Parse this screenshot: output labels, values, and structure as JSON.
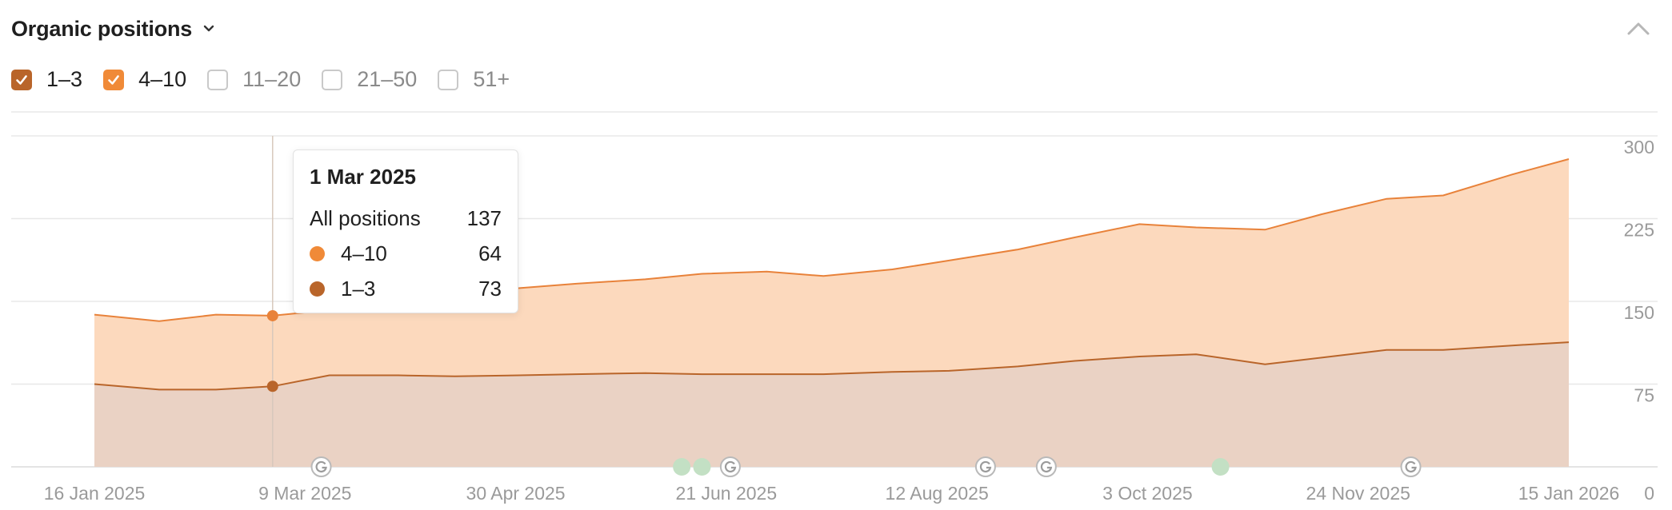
{
  "header": {
    "title": "Organic positions",
    "dropdown_icon": "chevron-down-icon",
    "collapse_icon": "chevron-up-icon"
  },
  "filters": [
    {
      "label": "1–3",
      "checked": true,
      "color": "#b9652a"
    },
    {
      "label": "4–10",
      "checked": true,
      "color": "#f08a38"
    },
    {
      "label": "11–20",
      "checked": false,
      "color": "#c9c9c9"
    },
    {
      "label": "21–50",
      "checked": false,
      "color": "#c9c9c9"
    },
    {
      "label": "51+",
      "checked": false,
      "color": "#c9c9c9"
    }
  ],
  "tooltip": {
    "date": "1 Mar 2025",
    "total_label": "All positions",
    "total_value": "137",
    "rows": [
      {
        "label": "4–10",
        "value": "64",
        "color": "#f08a38"
      },
      {
        "label": "1–3",
        "value": "73",
        "color": "#b9652a"
      }
    ]
  },
  "chart_data": {
    "type": "area",
    "stacked": true,
    "x_labels": [
      "16 Jan 2025",
      "9 Mar 2025",
      "30 Apr 2025",
      "21 Jun 2025",
      "12 Aug 2025",
      "3 Oct 2025",
      "24 Nov 2025",
      "15 Jan 2026"
    ],
    "y_ticks": [
      0,
      75,
      150,
      225,
      300
    ],
    "ylim": [
      0,
      300
    ],
    "grid": true,
    "y_axis_side": "right",
    "colors": {
      "1-3_line": "#b9652a",
      "1-3_fill": "#ead2c4",
      "4-10_line": "#e8823a",
      "4-10_fill": "#fcd9bd",
      "grid": "#e8e8e8",
      "tick_text": "#9a9a9a"
    },
    "x_dates": [
      "2025-01-16",
      "2025-02-01",
      "2025-02-15",
      "2025-03-01",
      "2025-03-15",
      "2025-04-01",
      "2025-04-15",
      "2025-05-01",
      "2025-05-15",
      "2025-06-01",
      "2025-06-15",
      "2025-07-01",
      "2025-07-15",
      "2025-08-01",
      "2025-08-15",
      "2025-09-01",
      "2025-09-15",
      "2025-10-01",
      "2025-10-15",
      "2025-11-01",
      "2025-11-15",
      "2025-12-01",
      "2025-12-15",
      "2026-01-01",
      "2026-01-15"
    ],
    "series": [
      {
        "name": "1–3",
        "values": [
          75,
          70,
          70,
          73,
          83,
          83,
          82,
          83,
          84,
          85,
          84,
          84,
          84,
          86,
          87,
          91,
          96,
          100,
          102,
          93,
          99,
          106,
          106,
          110,
          113
        ]
      },
      {
        "name": "4–10",
        "values": [
          63,
          62,
          68,
          64,
          59,
          62,
          74,
          79,
          82,
          85,
          91,
          93,
          89,
          93,
          100,
          106,
          112,
          120,
          115,
          122,
          130,
          137,
          140,
          155,
          166
        ]
      }
    ],
    "google_update_dates": [
      "2025-03-13",
      "2025-06-22",
      "2025-08-24",
      "2025-09-08",
      "2025-12-07"
    ],
    "event_dates": [
      "2025-06-10",
      "2025-06-15",
      "2025-10-21"
    ]
  }
}
